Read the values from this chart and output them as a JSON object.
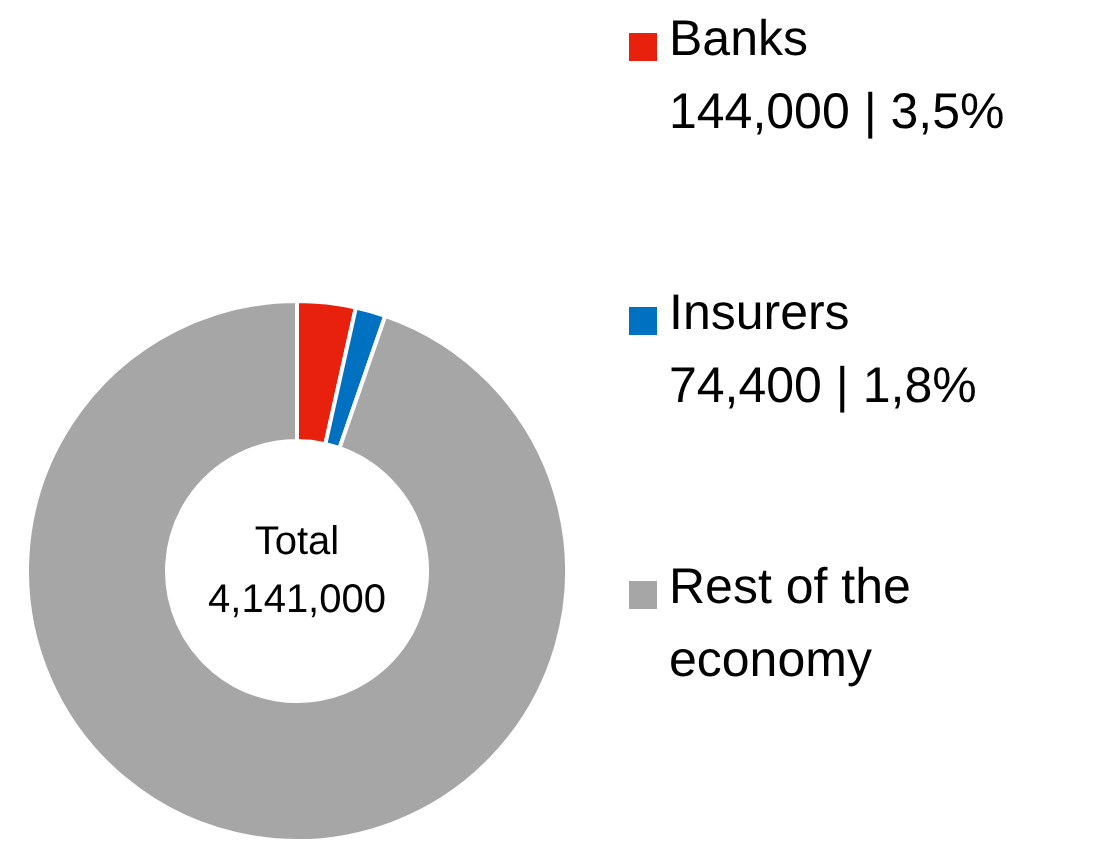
{
  "chart_data": {
    "type": "donut",
    "categories": [
      "Banks",
      "Insurers",
      "Rest of the economy"
    ],
    "values": [
      3.5,
      1.8,
      94.7
    ],
    "value_labels": [
      "144,000 | 3,5%",
      "74,400 | 1,8%",
      null
    ],
    "colors": [
      "#e8200e",
      "#0070c0",
      "#a6a6a6"
    ],
    "annotations": [
      "Total\n4,141,000"
    ],
    "legend": "right"
  }
}
